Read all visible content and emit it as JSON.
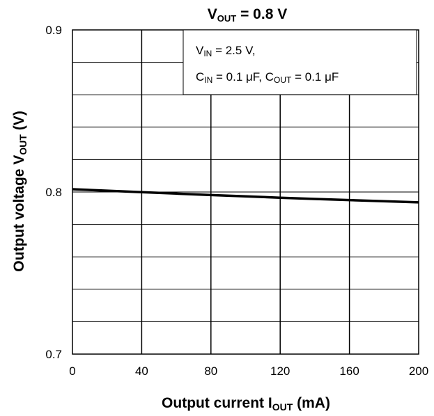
{
  "chart_data": {
    "type": "line",
    "title": {
      "main": "V",
      "sub": "OUT",
      "rest": " = 0.8 V"
    },
    "xlabel": {
      "main": "Output current   I",
      "sub": "OUT",
      "rest": "   (mA)"
    },
    "ylabel": {
      "main": "Output voltage   V",
      "sub": "OUT",
      "rest": "   (V)"
    },
    "xlim": [
      0,
      200
    ],
    "ylim": [
      0.7,
      0.9
    ],
    "x_ticks": [
      0,
      40,
      80,
      120,
      160,
      200
    ],
    "y_ticks": [
      0.7,
      0.8,
      0.9
    ],
    "y_tick_labels": [
      "0.7",
      "0.8",
      "0.9"
    ],
    "grid": true,
    "grid_y_step": 0.02,
    "grid_x_step": 40,
    "annotation": {
      "line1": {
        "a": "V",
        "a_sub": "IN",
        "a_rest": " = 2.5 V,"
      },
      "line2": {
        "a": "C",
        "a_sub": "IN",
        "a_rest": " = 0.1 μF, C",
        "b_sub": "OUT",
        "b_rest": " = 0.1 μF"
      }
    },
    "series": [
      {
        "x": [
          0,
          20,
          40,
          60,
          80,
          100,
          120,
          140,
          160,
          180,
          200
        ],
        "y": [
          0.8017,
          0.8008,
          0.7999,
          0.799,
          0.7981,
          0.7973,
          0.7965,
          0.7957,
          0.795,
          0.7943,
          0.7936
        ],
        "color": "#000000"
      }
    ]
  }
}
